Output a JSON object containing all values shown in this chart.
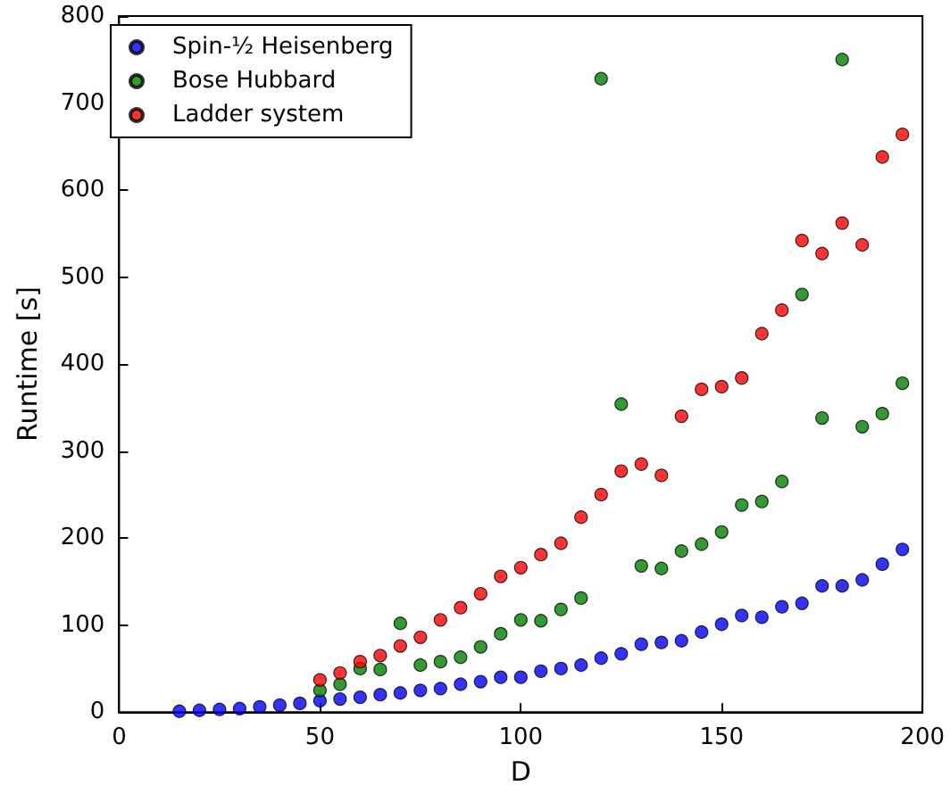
{
  "chart_data": {
    "type": "scatter",
    "xlabel": "D",
    "ylabel": "Runtime [s]",
    "xlim": [
      0,
      200
    ],
    "xticks": [
      0,
      50,
      100,
      150,
      200
    ],
    "ylim": [
      0,
      800
    ],
    "yticks": [
      0,
      100,
      200,
      300,
      400,
      500,
      600,
      700,
      800
    ],
    "grid": false,
    "legend": "top left",
    "marker": "circle",
    "series": [
      {
        "name": "Spin-½ Heisenberg",
        "color": "#0000ff",
        "x": [
          15,
          20,
          25,
          30,
          35,
          40,
          45,
          50,
          55,
          60,
          65,
          70,
          75,
          80,
          85,
          90,
          95,
          100,
          105,
          110,
          115,
          120,
          125,
          130,
          135,
          140,
          145,
          150,
          155,
          160,
          165,
          170,
          175,
          180,
          185,
          190,
          195
        ],
        "values": [
          1,
          2,
          3,
          4,
          6,
          8,
          10,
          13,
          15,
          17,
          20,
          22,
          25,
          27,
          32,
          35,
          40,
          40,
          47,
          50,
          54,
          62,
          67,
          78,
          80,
          82,
          92,
          101,
          111,
          109,
          121,
          125,
          145,
          145,
          152,
          170,
          187
        ]
      },
      {
        "name": "Bose Hubbard",
        "color": "#007f00",
        "x": [
          50,
          55,
          60,
          65,
          70,
          75,
          80,
          85,
          90,
          95,
          100,
          105,
          110,
          115,
          120,
          125,
          130,
          135,
          140,
          145,
          150,
          155,
          160,
          165,
          170,
          175,
          180,
          185,
          190,
          195
        ],
        "values": [
          25,
          32,
          50,
          49,
          102,
          54,
          58,
          63,
          75,
          90,
          106,
          105,
          118,
          131,
          728,
          354,
          168,
          165,
          185,
          193,
          207,
          238,
          242,
          265,
          480,
          338,
          750,
          328,
          343,
          378
        ]
      },
      {
        "name": "Ladder system",
        "color": "#ff0000",
        "x": [
          50,
          55,
          60,
          65,
          70,
          75,
          80,
          85,
          90,
          95,
          100,
          105,
          110,
          115,
          120,
          125,
          130,
          135,
          140,
          145,
          150,
          155,
          160,
          165,
          170,
          175,
          180,
          185,
          190,
          195
        ],
        "values": [
          37,
          45,
          58,
          65,
          76,
          86,
          106,
          120,
          136,
          156,
          166,
          181,
          194,
          224,
          250,
          277,
          285,
          272,
          340,
          371,
          374,
          384,
          435,
          462,
          542,
          527,
          562,
          537,
          638,
          664
        ]
      }
    ]
  }
}
